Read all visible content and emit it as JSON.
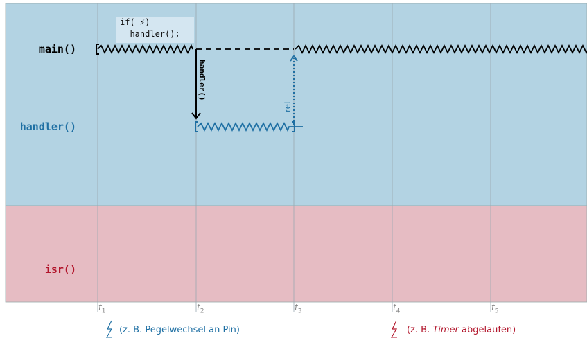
{
  "lanes": {
    "main": "main()",
    "handler": "handler()",
    "isr": "isr()"
  },
  "code": {
    "line1": "if( ⚡)",
    "line2": "  handler();"
  },
  "arrows": {
    "call": "handler()",
    "ret": "ret"
  },
  "time_ticks": [
    "t1",
    "t2",
    "t3",
    "t4",
    "t5"
  ],
  "captions": {
    "first_prefix": "(z. B. Pegelwechsel an Pin)",
    "second_prefix": "(z. B. ",
    "second_italic": "Timer",
    "second_suffix": " abgelaufen)"
  },
  "colors": {
    "upper_bg": "#b3d3e3",
    "lower_bg": "#e6bcc3",
    "handler_blue": "#1e6fa3",
    "isr_red": "#b2152b",
    "main_black": "#000000"
  }
}
